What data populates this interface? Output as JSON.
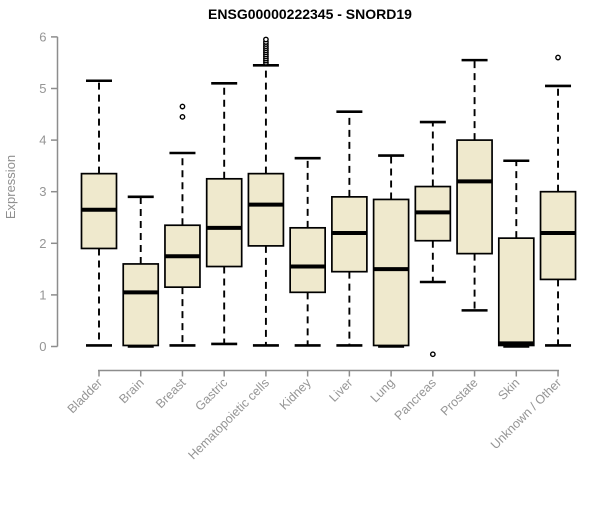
{
  "chart_data": {
    "type": "boxplot",
    "title": "ENSG00000222345 - SNORD19",
    "ylabel": "Expression",
    "xlabel": "",
    "ylim": [
      0,
      6
    ],
    "y_ticks": [
      "0",
      "1",
      "2",
      "3",
      "4",
      "5",
      "6"
    ],
    "grid": false,
    "legend_position": "none",
    "colors": {
      "box_fill": "#EFE9CD",
      "box_stroke": "#000000",
      "median": "#000000",
      "whisker": "#000000",
      "axis": "#8D8D8D",
      "tick_label": "#959595",
      "title": "#000000",
      "background": "#FFFFFF"
    },
    "categories": [
      "Bladder",
      "Brain",
      "Breast",
      "Gastric",
      "Hematopoietic cells",
      "Kidney",
      "Liver",
      "Lung",
      "Pancreas",
      "Prostate",
      "Skin",
      "Unknown / Other"
    ],
    "series": [
      {
        "name": "Bladder",
        "low": 0.02,
        "q1": 1.9,
        "median": 2.65,
        "q3": 3.35,
        "high": 5.15,
        "outliers": []
      },
      {
        "name": "Brain",
        "low": 0.0,
        "q1": 0.02,
        "median": 1.05,
        "q3": 1.6,
        "high": 2.9,
        "outliers": []
      },
      {
        "name": "Breast",
        "low": 0.02,
        "q1": 1.15,
        "median": 1.75,
        "q3": 2.35,
        "high": 3.75,
        "outliers": [
          4.45,
          4.65
        ]
      },
      {
        "name": "Gastric",
        "low": 0.05,
        "q1": 1.55,
        "median": 2.3,
        "q3": 3.25,
        "high": 5.1,
        "outliers": []
      },
      {
        "name": "Hematopoietic cells",
        "low": 0.02,
        "q1": 1.95,
        "median": 2.75,
        "q3": 3.35,
        "high": 5.45,
        "outliers": [
          5.5,
          5.54,
          5.58,
          5.62,
          5.66,
          5.7,
          5.74,
          5.78,
          5.82,
          5.86,
          5.9,
          5.95
        ]
      },
      {
        "name": "Kidney",
        "low": 0.02,
        "q1": 1.05,
        "median": 1.55,
        "q3": 2.3,
        "high": 3.65,
        "outliers": []
      },
      {
        "name": "Liver",
        "low": 0.02,
        "q1": 1.45,
        "median": 2.2,
        "q3": 2.9,
        "high": 4.55,
        "outliers": []
      },
      {
        "name": "Lung",
        "low": 0.0,
        "q1": 0.02,
        "median": 1.5,
        "q3": 2.85,
        "high": 3.7,
        "outliers": []
      },
      {
        "name": "Pancreas",
        "low": 1.25,
        "q1": 2.05,
        "median": 2.6,
        "q3": 3.1,
        "high": 4.35,
        "outliers": [
          -0.15
        ]
      },
      {
        "name": "Prostate",
        "low": 0.7,
        "q1": 1.8,
        "median": 3.2,
        "q3": 4.0,
        "high": 5.55,
        "outliers": []
      },
      {
        "name": "Skin",
        "low": 0.0,
        "q1": 0.02,
        "median": 0.06,
        "q3": 2.1,
        "high": 3.6,
        "outliers": []
      },
      {
        "name": "Unknown / Other",
        "low": 0.02,
        "q1": 1.3,
        "median": 2.2,
        "q3": 3.0,
        "high": 5.05,
        "outliers": [
          5.6
        ]
      }
    ]
  }
}
